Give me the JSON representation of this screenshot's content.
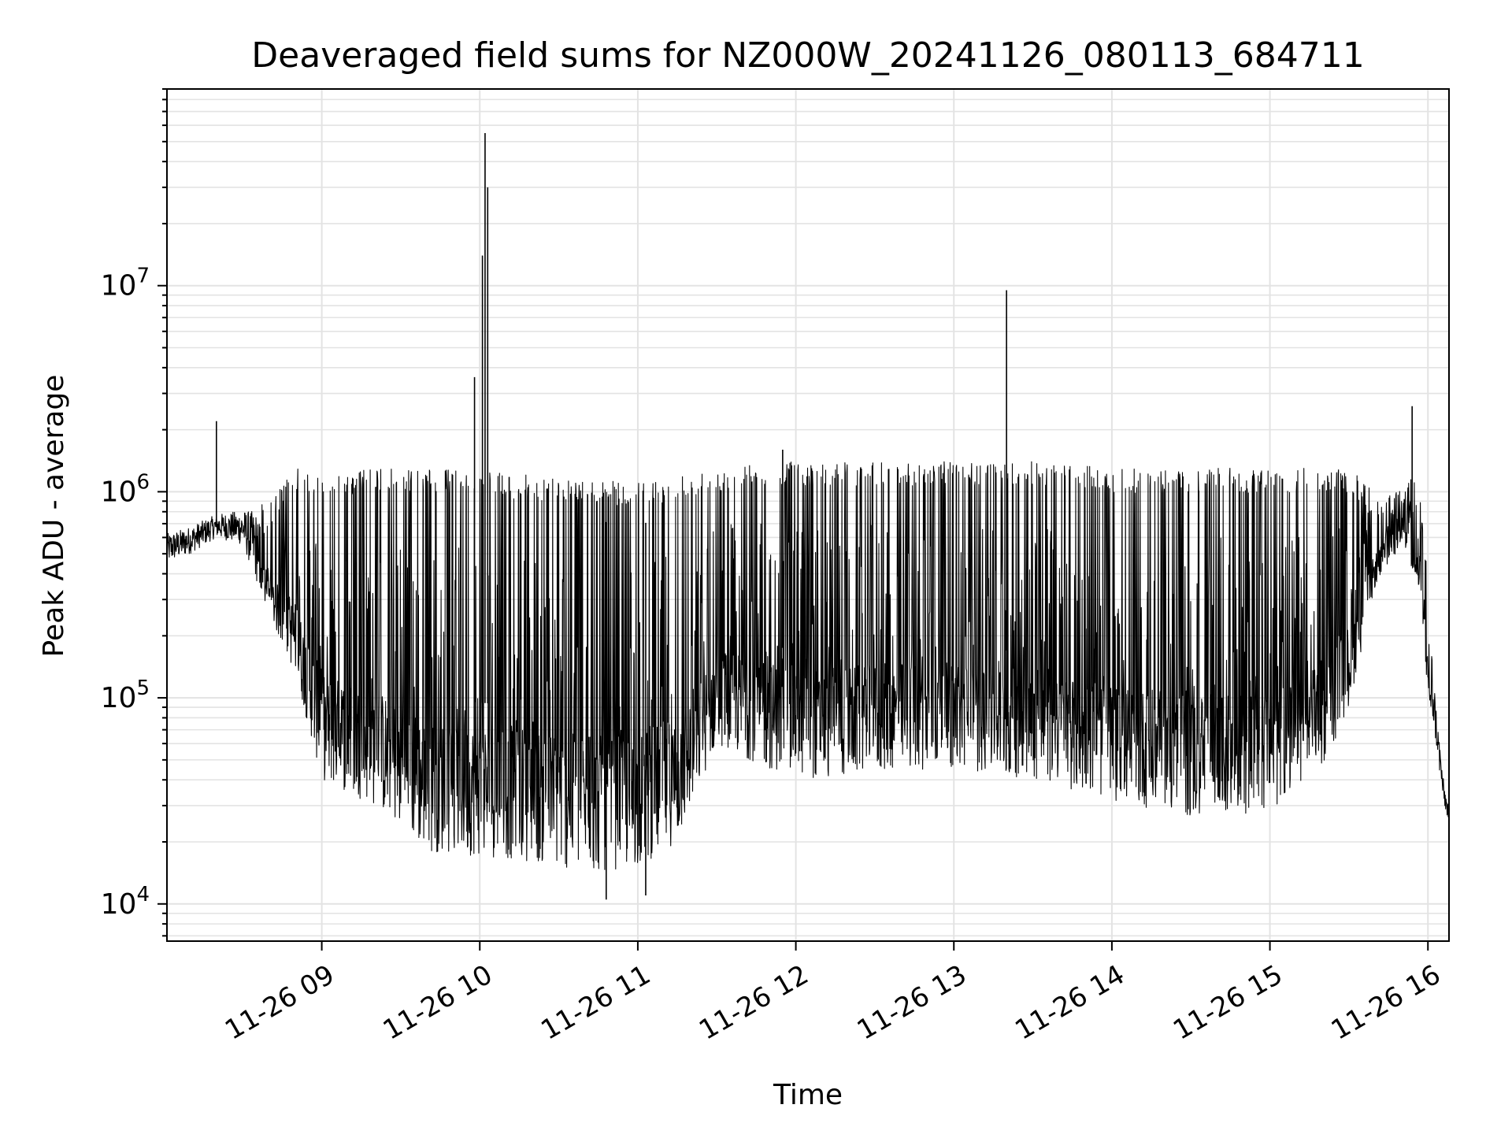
{
  "chart_data": {
    "type": "line",
    "title": "Deaveraged field sums for NZ000W_20241126_080113_684711",
    "xlabel": "Time",
    "ylabel": "Peak ADU - average",
    "x_axis": {
      "kind": "datetime",
      "range": [
        "2024-11-26T08:01:13",
        "2024-11-26T16:08:00"
      ],
      "ticks": [
        {
          "value": "2024-11-26T09:00:00",
          "label": "11-26 09"
        },
        {
          "value": "2024-11-26T10:00:00",
          "label": "11-26 10"
        },
        {
          "value": "2024-11-26T11:00:00",
          "label": "11-26 11"
        },
        {
          "value": "2024-11-26T12:00:00",
          "label": "11-26 12"
        },
        {
          "value": "2024-11-26T13:00:00",
          "label": "11-26 13"
        },
        {
          "value": "2024-11-26T14:00:00",
          "label": "11-26 14"
        },
        {
          "value": "2024-11-26T15:00:00",
          "label": "11-26 15"
        },
        {
          "value": "2024-11-26T16:00:00",
          "label": "11-26 16"
        }
      ]
    },
    "y_axis": {
      "scale": "log",
      "range": [
        6600,
        90000000
      ],
      "ticks": [
        {
          "value": 10000,
          "base": "10",
          "exp": "4"
        },
        {
          "value": 100000,
          "base": "10",
          "exp": "5"
        },
        {
          "value": 1000000,
          "base": "10",
          "exp": "6"
        },
        {
          "value": 10000000,
          "base": "10",
          "exp": "7"
        }
      ]
    },
    "grid": true,
    "line_color": "#000000",
    "series": [
      {
        "envelope": [
          {
            "t": "2024-11-26T08:01:13",
            "lo": 450000,
            "hi": 650000
          },
          {
            "t": "2024-11-26T08:10:00",
            "lo": 500000,
            "hi": 700000
          },
          {
            "t": "2024-11-26T08:20:00",
            "lo": 600000,
            "hi": 800000
          },
          {
            "t": "2024-11-26T08:30:00",
            "lo": 550000,
            "hi": 850000
          },
          {
            "t": "2024-11-26T08:40:00",
            "lo": 250000,
            "hi": 900000
          },
          {
            "t": "2024-11-26T08:50:00",
            "lo": 130000,
            "hi": 1300000
          },
          {
            "t": "2024-11-26T09:00:00",
            "lo": 40000,
            "hi": 1200000
          },
          {
            "t": "2024-11-26T09:20:00",
            "lo": 30000,
            "hi": 1300000
          },
          {
            "t": "2024-11-26T09:40:00",
            "lo": 18000,
            "hi": 1300000
          },
          {
            "t": "2024-11-26T10:00:00",
            "lo": 17000,
            "hi": 1250000
          },
          {
            "t": "2024-11-26T10:20:00",
            "lo": 16000,
            "hi": 1200000
          },
          {
            "t": "2024-11-26T10:40:00",
            "lo": 14000,
            "hi": 1150000
          },
          {
            "t": "2024-11-26T11:00:00",
            "lo": 15000,
            "hi": 1100000
          },
          {
            "t": "2024-11-26T11:15:00",
            "lo": 20000,
            "hi": 1200000
          },
          {
            "t": "2024-11-26T11:30:00",
            "lo": 60000,
            "hi": 1300000
          },
          {
            "t": "2024-11-26T11:50:00",
            "lo": 45000,
            "hi": 1400000
          },
          {
            "t": "2024-11-26T12:10:00",
            "lo": 40000,
            "hi": 1400000
          },
          {
            "t": "2024-11-26T12:40:00",
            "lo": 45000,
            "hi": 1400000
          },
          {
            "t": "2024-11-26T13:00:00",
            "lo": 45000,
            "hi": 1400000
          },
          {
            "t": "2024-11-26T13:30:00",
            "lo": 40000,
            "hi": 1400000
          },
          {
            "t": "2024-11-26T14:00:00",
            "lo": 32000,
            "hi": 1300000
          },
          {
            "t": "2024-11-26T14:30:00",
            "lo": 26000,
            "hi": 1300000
          },
          {
            "t": "2024-11-26T15:00:00",
            "lo": 28000,
            "hi": 1300000
          },
          {
            "t": "2024-11-26T15:20:00",
            "lo": 45000,
            "hi": 1300000
          },
          {
            "t": "2024-11-26T15:30:00",
            "lo": 90000,
            "hi": 1300000
          },
          {
            "t": "2024-11-26T15:40:00",
            "lo": 350000,
            "hi": 1000000
          },
          {
            "t": "2024-11-26T15:50:00",
            "lo": 550000,
            "hi": 1100000
          },
          {
            "t": "2024-11-26T15:57:00",
            "lo": 300000,
            "hi": 1200000
          },
          {
            "t": "2024-11-26T16:00:00",
            "lo": 100000,
            "hi": 350000
          },
          {
            "t": "2024-11-26T16:03:00",
            "lo": 60000,
            "hi": 100000
          },
          {
            "t": "2024-11-26T16:06:00",
            "lo": 30000,
            "hi": 40000
          },
          {
            "t": "2024-11-26T16:08:00",
            "lo": 25000,
            "hi": 30000
          }
        ],
        "spikes": [
          {
            "t": "2024-11-26T08:20:00",
            "value": 2200000
          },
          {
            "t": "2024-11-26T09:58:00",
            "value": 3600000
          },
          {
            "t": "2024-11-26T10:01:00",
            "value": 14000000
          },
          {
            "t": "2024-11-26T10:02:00",
            "value": 55000000
          },
          {
            "t": "2024-11-26T10:03:00",
            "value": 30000000
          },
          {
            "t": "2024-11-26T11:55:00",
            "value": 1600000
          },
          {
            "t": "2024-11-26T13:20:00",
            "value": 9500000
          },
          {
            "t": "2024-11-26T15:54:00",
            "value": 2600000
          },
          {
            "t": "2024-11-26T10:48:00",
            "value": 10500
          },
          {
            "t": "2024-11-26T11:03:00",
            "value": 11000
          }
        ]
      }
    ]
  }
}
